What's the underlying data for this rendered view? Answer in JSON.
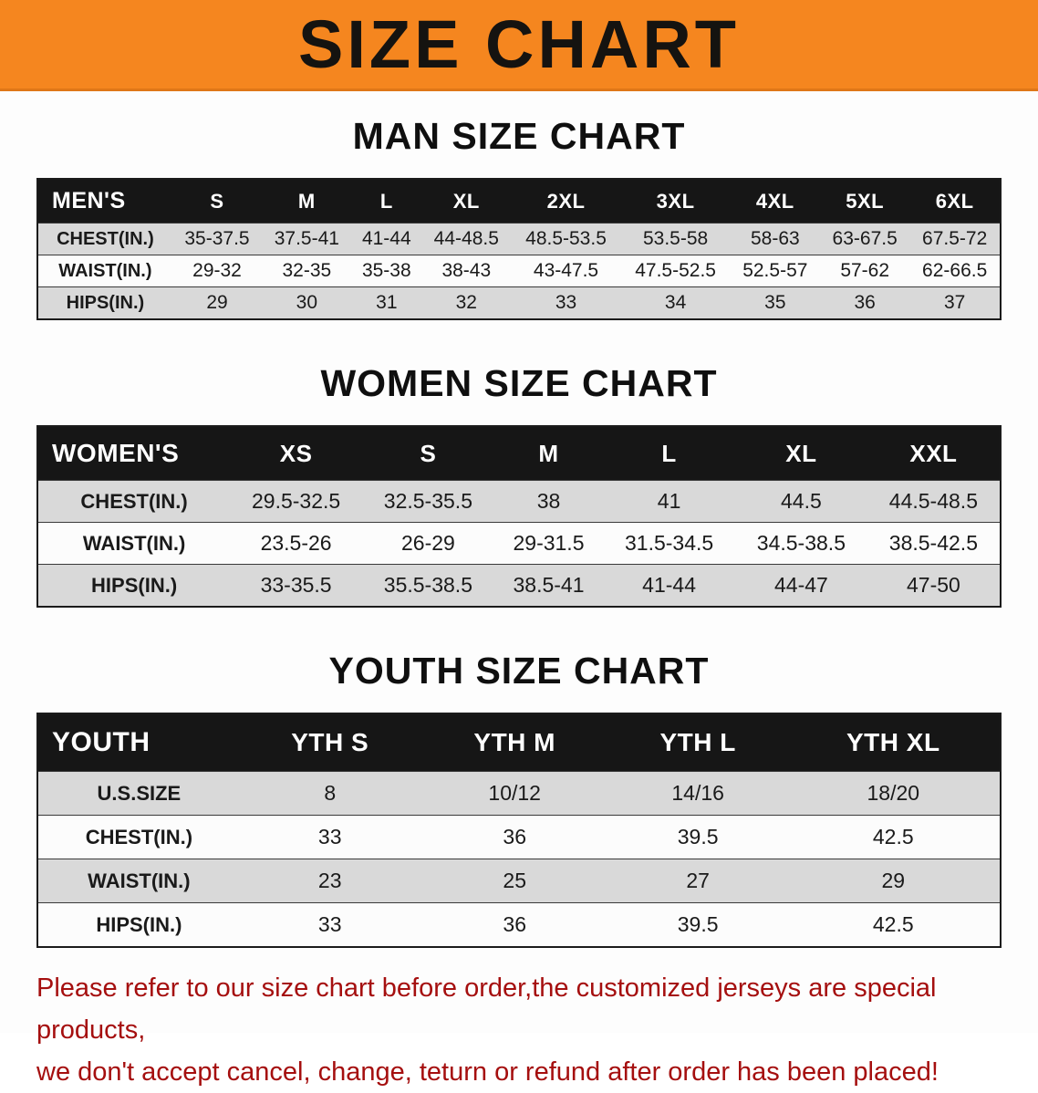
{
  "banner": {
    "title": "SIZE CHART"
  },
  "men": {
    "heading": "MAN SIZE CHART",
    "header": [
      "MEN'S",
      "S",
      "M",
      "L",
      "XL",
      "2XL",
      "3XL",
      "4XL",
      "5XL",
      "6XL"
    ],
    "rows": [
      {
        "label": "CHEST(IN.)",
        "values": [
          "35-37.5",
          "37.5-41",
          "41-44",
          "44-48.5",
          "48.5-53.5",
          "53.5-58",
          "58-63",
          "63-67.5",
          "67.5-72"
        ]
      },
      {
        "label": "WAIST(IN.)",
        "values": [
          "29-32",
          "32-35",
          "35-38",
          "38-43",
          "43-47.5",
          "47.5-52.5",
          "52.5-57",
          "57-62",
          "62-66.5"
        ]
      },
      {
        "label": "HIPS(IN.)",
        "values": [
          "29",
          "30",
          "31",
          "32",
          "33",
          "34",
          "35",
          "36",
          "37"
        ]
      }
    ]
  },
  "women": {
    "heading": "WOMEN SIZE CHART",
    "header": [
      "WOMEN'S",
      "XS",
      "S",
      "M",
      "L",
      "XL",
      "XXL"
    ],
    "rows": [
      {
        "label": "CHEST(IN.)",
        "values": [
          "29.5-32.5",
          "32.5-35.5",
          "38",
          "41",
          "44.5",
          "44.5-48.5"
        ]
      },
      {
        "label": "WAIST(IN.)",
        "values": [
          "23.5-26",
          "26-29",
          "29-31.5",
          "31.5-34.5",
          "34.5-38.5",
          "38.5-42.5"
        ]
      },
      {
        "label": "HIPS(IN.)",
        "values": [
          "33-35.5",
          "35.5-38.5",
          "38.5-41",
          "41-44",
          "44-47",
          "47-50"
        ]
      }
    ]
  },
  "youth": {
    "heading": "YOUTH SIZE CHART",
    "header": [
      "YOUTH",
      "YTH S",
      "YTH M",
      "YTH L",
      "YTH XL"
    ],
    "rows": [
      {
        "label": "U.S.SIZE",
        "values": [
          "8",
          "10/12",
          "14/16",
          "18/20"
        ]
      },
      {
        "label": "CHEST(IN.)",
        "values": [
          "33",
          "36",
          "39.5",
          "42.5"
        ]
      },
      {
        "label": "WAIST(IN.)",
        "values": [
          "23",
          "25",
          "27",
          "29"
        ]
      },
      {
        "label": "HIPS(IN.)",
        "values": [
          "33",
          "36",
          "39.5",
          "42.5"
        ]
      }
    ]
  },
  "disclaimer": {
    "line1": "Please refer to our size chart before order,the customized jerseys are special products,",
    "line2": "we don't accept cancel, change, teturn or refund after order has been placed!"
  },
  "colors": {
    "banner_orange": "#f5861f",
    "table_header_black": "#161616",
    "row_gray": "#d9d9d9",
    "disclaimer_red": "#a50f0f"
  }
}
